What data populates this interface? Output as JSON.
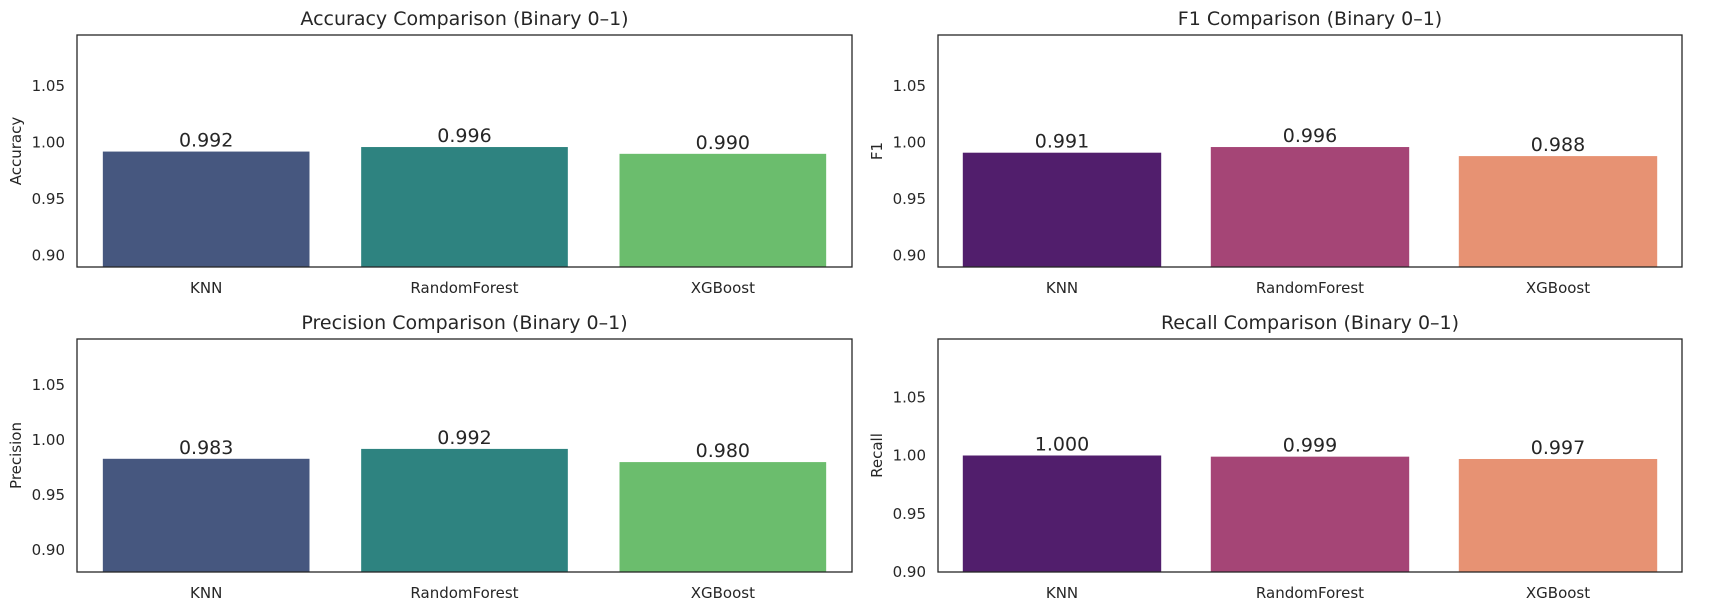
{
  "chart_data": [
    {
      "type": "bar",
      "title": "Accuracy Comparison (Binary 0–1)",
      "xlabel": "",
      "ylabel": "Accuracy",
      "categories": [
        "KNN",
        "RandomForest",
        "XGBoost"
      ],
      "values": [
        0.992,
        0.996,
        0.99
      ],
      "data_labels": [
        "0.992",
        "0.996",
        "0.990"
      ],
      "colors": [
        "#46577f",
        "#2e8380",
        "#6bbd6d"
      ],
      "ylim": [
        0.89,
        1.095
      ],
      "yticks": [
        "0.90",
        "0.95",
        "1.00",
        "1.05"
      ],
      "grid": false
    },
    {
      "type": "bar",
      "title": "F1 Comparison (Binary 0–1)",
      "xlabel": "",
      "ylabel": "F1",
      "categories": [
        "KNN",
        "RandomForest",
        "XGBoost"
      ],
      "values": [
        0.991,
        0.996,
        0.988
      ],
      "data_labels": [
        "0.991",
        "0.996",
        "0.988"
      ],
      "colors": [
        "#511e6c",
        "#a54576",
        "#e79273"
      ],
      "ylim": [
        0.89,
        1.095
      ],
      "yticks": [
        "0.90",
        "0.95",
        "1.00",
        "1.05"
      ],
      "grid": false
    },
    {
      "type": "bar",
      "title": "Precision Comparison (Binary 0–1)",
      "xlabel": "",
      "ylabel": "Precision",
      "categories": [
        "KNN",
        "RandomForest",
        "XGBoost"
      ],
      "values": [
        0.983,
        0.992,
        0.98
      ],
      "data_labels": [
        "0.983",
        "0.992",
        "0.980"
      ],
      "colors": [
        "#46577f",
        "#2e8380",
        "#6bbd6d"
      ],
      "ylim": [
        0.88,
        1.092
      ],
      "yticks": [
        "0.90",
        "0.95",
        "1.00",
        "1.05"
      ],
      "grid": false
    },
    {
      "type": "bar",
      "title": "Recall Comparison (Binary 0–1)",
      "xlabel": "",
      "ylabel": "Recall",
      "categories": [
        "KNN",
        "RandomForest",
        "XGBoost"
      ],
      "values": [
        1.0,
        0.999,
        0.997
      ],
      "data_labels": [
        "1.000",
        "0.999",
        "0.997"
      ],
      "colors": [
        "#511e6c",
        "#a54576",
        "#e79273"
      ],
      "ylim": [
        0.9,
        1.1
      ],
      "yticks": [
        "0.90",
        "0.95",
        "1.00",
        "1.05"
      ],
      "grid": false
    }
  ]
}
